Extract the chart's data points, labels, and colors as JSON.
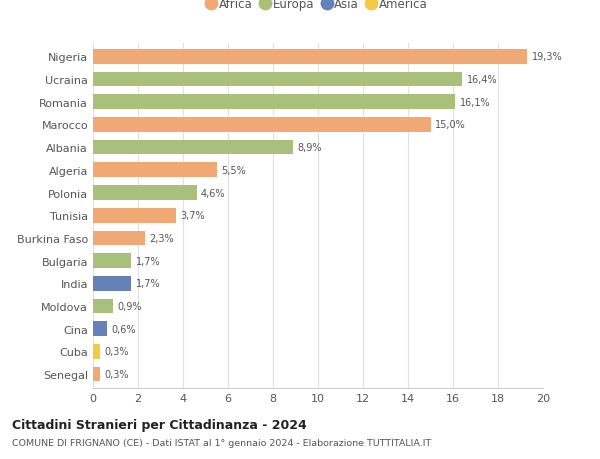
{
  "countries": [
    "Nigeria",
    "Ucraina",
    "Romania",
    "Marocco",
    "Albania",
    "Algeria",
    "Polonia",
    "Tunisia",
    "Burkina Faso",
    "Bulgaria",
    "India",
    "Moldova",
    "Cina",
    "Cuba",
    "Senegal"
  ],
  "values": [
    19.3,
    16.4,
    16.1,
    15.0,
    8.9,
    5.5,
    4.6,
    3.7,
    2.3,
    1.7,
    1.7,
    0.9,
    0.6,
    0.3,
    0.3
  ],
  "labels": [
    "19,3%",
    "16,4%",
    "16,1%",
    "15,0%",
    "8,9%",
    "5,5%",
    "4,6%",
    "3,7%",
    "2,3%",
    "1,7%",
    "1,7%",
    "0,9%",
    "0,6%",
    "0,3%",
    "0,3%"
  ],
  "continents": [
    "Africa",
    "Europa",
    "Europa",
    "Africa",
    "Europa",
    "Africa",
    "Europa",
    "Africa",
    "Africa",
    "Europa",
    "Asia",
    "Europa",
    "Asia",
    "America",
    "Africa"
  ],
  "colors": {
    "Africa": "#F0A875",
    "Europa": "#A8C07A",
    "Asia": "#6680B8",
    "America": "#F5C842"
  },
  "legend_order": [
    "Africa",
    "Europa",
    "Asia",
    "America"
  ],
  "title": "Cittadini Stranieri per Cittadinanza - 2024",
  "subtitle": "COMUNE DI FRIGNANO (CE) - Dati ISTAT al 1° gennaio 2024 - Elaborazione TUTTITALIA.IT",
  "xlim": [
    0,
    20
  ],
  "xticks": [
    0,
    2,
    4,
    6,
    8,
    10,
    12,
    14,
    16,
    18,
    20
  ],
  "background_color": "#ffffff",
  "grid_color": "#e0e0e0"
}
